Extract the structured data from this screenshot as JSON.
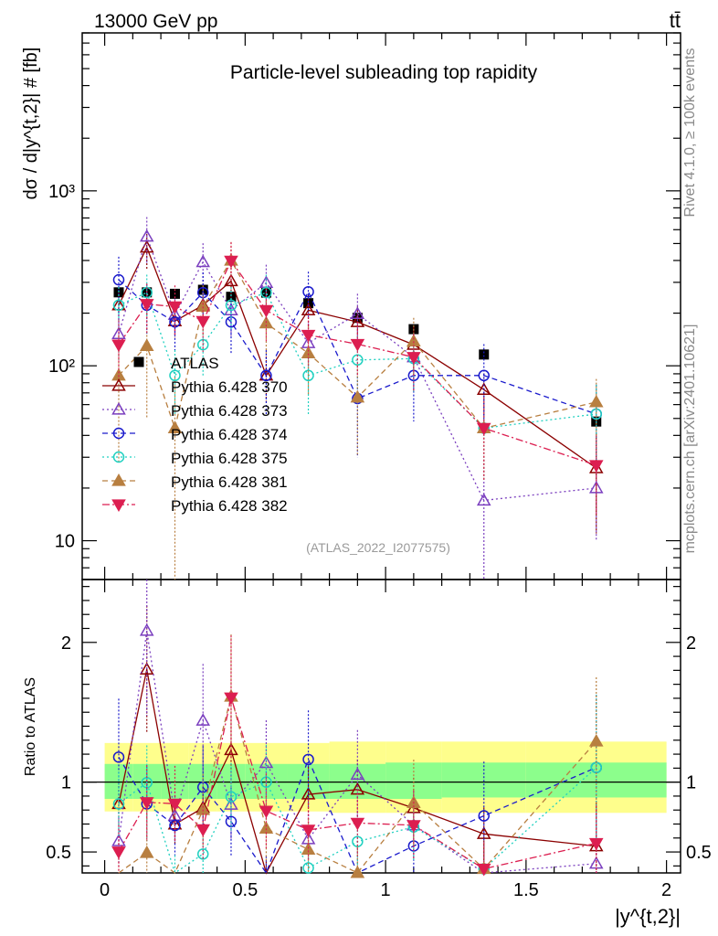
{
  "chart_data": {
    "type": "line",
    "header_left": "13000 GeV pp",
    "header_right": "tt̄",
    "title": "Particle-level subleading top rapidity",
    "ylabel_main": "dσ / d|y^{t,2}| # [fb]",
    "ylabel_ratio": "Ratio to ATLAS",
    "xlabel": "|y^{t,2}|",
    "analysis_tag": "(ATLAS_2022_I2077575)",
    "side_label_top": "Rivet 4.1.0, ≥ 100k events",
    "side_label_bottom": "mcplots.cern.ch [arXiv:2401.10621]",
    "xlim": [
      -0.08,
      2.05
    ],
    "ylim_main_log": [
      6,
      8000
    ],
    "ylim_ratio": [
      0.35,
      2.45
    ],
    "x_ticks": [
      0,
      0.5,
      1,
      1.5,
      2
    ],
    "x_tick_labels": [
      "0",
      "0.5",
      "1",
      "1.5",
      "2"
    ],
    "y_ticks_main": [
      10,
      100,
      1000
    ],
    "y_tick_labels_main": [
      "10",
      "10²",
      "10³"
    ],
    "y_ticks_ratio": [
      0.5,
      1,
      2
    ],
    "y_tick_labels_ratio": [
      "0.5",
      "1",
      "2"
    ],
    "bin_edges": [
      0.0,
      0.1,
      0.2,
      0.3,
      0.4,
      0.5,
      0.65,
      0.8,
      1.0,
      1.2,
      1.5,
      2.0
    ],
    "x": [
      0.05,
      0.15,
      0.25,
      0.35,
      0.45,
      0.575,
      0.725,
      0.9,
      1.1,
      1.35,
      1.75
    ],
    "atlas": [
      263,
      263,
      258,
      272,
      248,
      262,
      228,
      188,
      162,
      116,
      48
    ],
    "band_green": [
      [
        0.88,
        1.13
      ],
      [
        0.88,
        1.13
      ],
      [
        0.88,
        1.13
      ],
      [
        0.88,
        1.13
      ],
      [
        0.88,
        1.13
      ],
      [
        0.88,
        1.13
      ],
      [
        0.88,
        1.13
      ],
      [
        0.88,
        1.13
      ],
      [
        0.88,
        1.14
      ],
      [
        0.89,
        1.14
      ],
      [
        0.89,
        1.14
      ]
    ],
    "band_yellow": [
      [
        0.79,
        1.28
      ],
      [
        0.79,
        1.28
      ],
      [
        0.79,
        1.28
      ],
      [
        0.79,
        1.28
      ],
      [
        0.79,
        1.28
      ],
      [
        0.79,
        1.28
      ],
      [
        0.79,
        1.28
      ],
      [
        0.78,
        1.29
      ],
      [
        0.78,
        1.29
      ],
      [
        0.78,
        1.29
      ],
      [
        0.78,
        1.29
      ]
    ],
    "series": [
      {
        "name": "ATLAS",
        "values": [
          263,
          263,
          258,
          272,
          248,
          262,
          228,
          188,
          162,
          116,
          48
        ],
        "marker": "square",
        "dash": "none",
        "color": "#000000"
      },
      {
        "name": "Pythia 6.428 370",
        "values": [
          222,
          475,
          180,
          222,
          305,
          88,
          208,
          178,
          132,
          73,
          26
        ],
        "errors": [
          40,
          120,
          35,
          40,
          60,
          25,
          45,
          40,
          35,
          22,
          15
        ],
        "marker": "triangle-up-open",
        "dash": "solid",
        "color": "#8b0000"
      },
      {
        "name": "Pythia 6.428 373",
        "values": [
          152,
          548,
          196,
          392,
          208,
          298,
          135,
          198,
          112,
          17,
          20
        ],
        "errors": [
          45,
          160,
          45,
          110,
          60,
          80,
          40,
          60,
          40,
          12,
          10
        ],
        "marker": "triangle-up-open",
        "dash": "dotted",
        "color": "#7b3fbf"
      },
      {
        "name": "Pythia 6.428 374",
        "values": [
          310,
          222,
          178,
          262,
          178,
          88,
          265,
          65,
          88,
          88,
          53
        ],
        "errors": [
          110,
          70,
          55,
          80,
          60,
          35,
          80,
          35,
          40,
          45,
          25
        ],
        "marker": "circle-open",
        "dash": "dashed",
        "color": "#1a1acc"
      },
      {
        "name": "Pythia 6.428 375",
        "values": [
          222,
          262,
          88,
          132,
          222,
          262,
          88,
          108,
          110,
          44,
          53
        ],
        "errors": [
          60,
          70,
          35,
          45,
          60,
          70,
          35,
          40,
          40,
          22,
          25
        ],
        "marker": "circle-open",
        "dash": "dotted",
        "color": "#20d0c0"
      },
      {
        "name": "Pythia 6.428 381",
        "values": [
          88,
          130,
          44,
          218,
          400,
          175,
          118,
          66,
          138,
          44,
          62
        ],
        "errors": [
          60,
          80,
          42,
          70,
          110,
          60,
          50,
          35,
          50,
          22,
          22
        ],
        "marker": "triangle-up-filled",
        "dash": "dashed",
        "color": "#b87f40"
      },
      {
        "name": "Pythia 6.428 382",
        "values": [
          132,
          225,
          218,
          180,
          398,
          208,
          150,
          133,
          112,
          44,
          27
        ],
        "errors": [
          50,
          70,
          70,
          60,
          110,
          70,
          50,
          45,
          40,
          22,
          13
        ],
        "marker": "triangle-down-filled",
        "dash": "dashdot",
        "color": "#dc1e50"
      }
    ]
  }
}
